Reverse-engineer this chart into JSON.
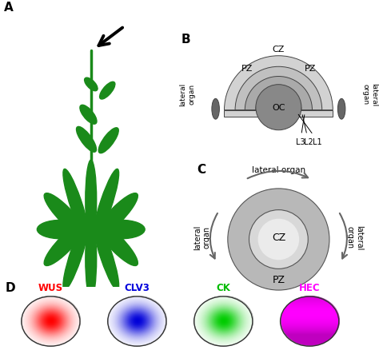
{
  "panel_A_label": "A",
  "panel_B_label": "B",
  "panel_C_label": "C",
  "panel_D_label": "D",
  "bg_color": "#ffffff",
  "green": "#1a8a1a",
  "panel_B": {
    "CZ_label": "CZ",
    "PZ_label": "PZ",
    "OC_label": "OC",
    "L1_label": "L1",
    "L2_label": "L2",
    "L3_label": "L3",
    "lateral_organ_label": "lateral\norgan",
    "colors": [
      "#d2d2d2",
      "#c0c0c0",
      "#aaaaaa",
      "#888888"
    ],
    "radii": [
      1.0,
      0.8,
      0.62,
      0.42
    ],
    "color_lateral": "#666666"
  },
  "panel_C": {
    "CZ_label": "CZ",
    "PZ_label": "PZ",
    "lateral_organ_label": "lateral organ",
    "color_outer": "#b8b8b8",
    "color_inner": "#d8d8d8",
    "color_CZ": "#ebebeb",
    "r_outer": 1.0,
    "r_inner": 0.58,
    "arrow_color": "#666666"
  },
  "panel_D": {
    "items": [
      {
        "label": "WUS",
        "label_color": "#ff0000",
        "rgb": [
          1.0,
          0.0,
          0.0
        ],
        "bg_full": false
      },
      {
        "label": "CLV3",
        "label_color": "#0000dd",
        "rgb": [
          0.0,
          0.0,
          0.85
        ],
        "bg_full": false
      },
      {
        "label": "CK",
        "label_color": "#00bb00",
        "rgb": [
          0.0,
          0.8,
          0.0
        ],
        "bg_full": false
      },
      {
        "label": "HEC",
        "label_color": "#ff00ff",
        "rgb": [
          1.0,
          0.0,
          1.0
        ],
        "bg_full": true
      }
    ]
  }
}
